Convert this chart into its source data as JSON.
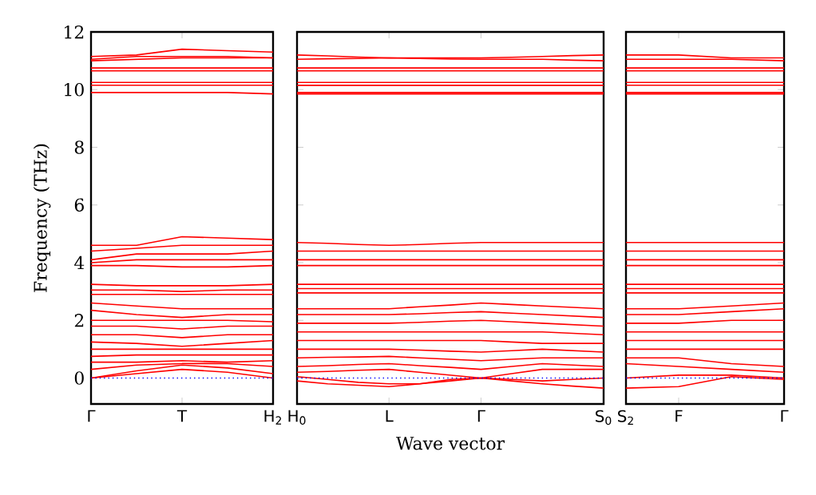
{
  "chart_data": [
    {
      "type": "line",
      "ylabel": "Frequency (THz)",
      "categories": [
        "Γ",
        null,
        "T",
        null,
        "H$_{2}$"
      ],
      "ylim": [
        -0.9,
        12
      ],
      "yticks": [
        0,
        2,
        4,
        6,
        8,
        10,
        12
      ],
      "marker": "none",
      "ref_lines": [
        {
          "axis": "y",
          "value": 0,
          "color": "#0000ff",
          "line_style": "dotted"
        }
      ],
      "series": [
        {
          "color": "#ff0000",
          "values": [
            11.15,
            11.2,
            11.4,
            11.35,
            11.3
          ]
        },
        {
          "color": "#ff0000",
          "values": [
            11.05,
            11.15,
            11.15,
            11.15,
            11.1
          ]
        },
        {
          "color": "#ff0000",
          "values": [
            11.0,
            11.05,
            11.1,
            11.1,
            11.1
          ]
        },
        {
          "color": "#ff0000",
          "values": [
            10.75,
            10.75,
            10.75,
            10.75,
            10.75
          ]
        },
        {
          "color": "#ff0000",
          "values": [
            10.65,
            10.65,
            10.65,
            10.65,
            10.65
          ]
        },
        {
          "color": "#ff0000",
          "values": [
            10.25,
            10.25,
            10.25,
            10.25,
            10.25
          ]
        },
        {
          "color": "#ff0000",
          "values": [
            10.15,
            10.15,
            10.15,
            10.15,
            10.15
          ]
        },
        {
          "color": "#ff0000",
          "values": [
            9.9,
            9.9,
            9.9,
            9.9,
            9.85
          ]
        },
        {
          "color": "#ff0000",
          "values": [
            4.6,
            4.6,
            4.9,
            4.85,
            4.8
          ]
        },
        {
          "color": "#ff0000",
          "values": [
            4.4,
            4.5,
            4.6,
            4.6,
            4.6
          ]
        },
        {
          "color": "#ff0000",
          "values": [
            4.1,
            4.3,
            4.3,
            4.3,
            4.4
          ]
        },
        {
          "color": "#ff0000",
          "values": [
            4.0,
            4.1,
            4.1,
            4.1,
            4.1
          ]
        },
        {
          "color": "#ff0000",
          "values": [
            3.9,
            3.9,
            3.85,
            3.85,
            3.9
          ]
        },
        {
          "color": "#ff0000",
          "values": [
            3.25,
            3.2,
            3.2,
            3.2,
            3.25
          ]
        },
        {
          "color": "#ff0000",
          "values": [
            3.05,
            3.05,
            3.0,
            3.05,
            3.05
          ]
        },
        {
          "color": "#ff0000",
          "values": [
            2.9,
            2.9,
            2.9,
            2.9,
            2.9
          ]
        },
        {
          "color": "#ff0000",
          "values": [
            2.6,
            2.5,
            2.4,
            2.4,
            2.4
          ]
        },
        {
          "color": "#ff0000",
          "values": [
            2.35,
            2.2,
            2.1,
            2.2,
            2.2
          ]
        },
        {
          "color": "#ff0000",
          "values": [
            2.0,
            2.0,
            2.0,
            2.0,
            1.95
          ]
        },
        {
          "color": "#ff0000",
          "values": [
            1.8,
            1.8,
            1.7,
            1.8,
            1.8
          ]
        },
        {
          "color": "#ff0000",
          "values": [
            1.5,
            1.5,
            1.4,
            1.5,
            1.5
          ]
        },
        {
          "color": "#ff0000",
          "values": [
            1.25,
            1.2,
            1.1,
            1.2,
            1.3
          ]
        },
        {
          "color": "#ff0000",
          "values": [
            1.0,
            1.0,
            1.0,
            1.0,
            1.0
          ]
        },
        {
          "color": "#ff0000",
          "values": [
            0.75,
            0.8,
            0.8,
            0.8,
            0.8
          ]
        },
        {
          "color": "#ff0000",
          "values": [
            0.55,
            0.55,
            0.6,
            0.55,
            0.6
          ]
        },
        {
          "color": "#ff0000",
          "values": [
            0.3,
            0.45,
            0.5,
            0.5,
            0.4
          ]
        },
        {
          "color": "#ff0000",
          "values": [
            0.0,
            0.25,
            0.45,
            0.35,
            0.15
          ]
        },
        {
          "color": "#ff0000",
          "values": [
            0.0,
            0.15,
            0.3,
            0.2,
            0.0
          ]
        }
      ]
    },
    {
      "type": "line",
      "xlabel": "Wave vector",
      "categories": [
        "H$_{0}$",
        null,
        null,
        "L",
        null,
        null,
        "Γ",
        null,
        null,
        null,
        "S$_{0}$"
      ],
      "ylim": [
        -0.9,
        12
      ],
      "yticks": [
        0,
        2,
        4,
        6,
        8,
        10,
        12
      ],
      "tick_labels": "x",
      "marker": "none",
      "ref_lines": [
        {
          "axis": "y",
          "value": 0,
          "color": "#0000ff",
          "line_style": "dotted"
        }
      ],
      "series": [
        {
          "color": "#ff0000",
          "values": [
            11.2,
            11.17,
            11.13,
            11.1,
            11.1,
            11.1,
            11.1,
            11.12,
            11.15,
            11.18,
            11.2
          ]
        },
        {
          "color": "#ff0000",
          "values": [
            11.05,
            11.07,
            11.08,
            11.1,
            11.08,
            11.06,
            11.05,
            11.05,
            11.05,
            11.02,
            11.0
          ]
        },
        {
          "color": "#ff0000",
          "values": [
            10.75,
            10.75,
            10.75,
            10.75,
            10.75,
            10.75,
            10.75,
            10.75,
            10.75,
            10.75,
            10.75
          ]
        },
        {
          "color": "#ff0000",
          "values": [
            10.65,
            10.65,
            10.65,
            10.65,
            10.65,
            10.65,
            10.65,
            10.65,
            10.65,
            10.65,
            10.65
          ]
        },
        {
          "color": "#ff0000",
          "values": [
            10.25,
            10.25,
            10.25,
            10.25,
            10.25,
            10.25,
            10.25,
            10.25,
            10.25,
            10.25,
            10.25
          ]
        },
        {
          "color": "#ff0000",
          "values": [
            10.15,
            10.15,
            10.15,
            10.15,
            10.15,
            10.15,
            10.15,
            10.15,
            10.15,
            10.15,
            10.15
          ]
        },
        {
          "color": "#ff0000",
          "values": [
            9.9,
            9.9,
            9.9,
            9.9,
            9.9,
            9.9,
            9.9,
            9.9,
            9.9,
            9.9,
            9.9
          ]
        },
        {
          "color": "#ff0000",
          "values": [
            9.85,
            9.85,
            9.85,
            9.85,
            9.85,
            9.85,
            9.85,
            9.85,
            9.85,
            9.85,
            9.85
          ]
        },
        {
          "color": "#ff0000",
          "values": [
            4.7,
            4.67,
            4.63,
            4.6,
            4.63,
            4.67,
            4.7,
            4.7,
            4.7,
            4.7,
            4.7
          ]
        },
        {
          "color": "#ff0000",
          "values": [
            4.4,
            4.4,
            4.4,
            4.4,
            4.4,
            4.4,
            4.4,
            4.4,
            4.4,
            4.4,
            4.4
          ]
        },
        {
          "color": "#ff0000",
          "values": [
            4.1,
            4.1,
            4.1,
            4.1,
            4.1,
            4.1,
            4.1,
            4.1,
            4.1,
            4.1,
            4.1
          ]
        },
        {
          "color": "#ff0000",
          "values": [
            3.9,
            3.9,
            3.9,
            3.9,
            3.9,
            3.9,
            3.9,
            3.9,
            3.9,
            3.9,
            3.9
          ]
        },
        {
          "color": "#ff0000",
          "values": [
            3.25,
            3.25,
            3.25,
            3.25,
            3.25,
            3.25,
            3.25,
            3.25,
            3.25,
            3.25,
            3.25
          ]
        },
        {
          "color": "#ff0000",
          "values": [
            3.1,
            3.1,
            3.1,
            3.1,
            3.1,
            3.1,
            3.1,
            3.1,
            3.1,
            3.1,
            3.1
          ]
        },
        {
          "color": "#ff0000",
          "values": [
            2.95,
            2.95,
            2.95,
            2.95,
            2.95,
            2.95,
            2.95,
            2.95,
            2.95,
            2.95,
            2.95
          ]
        },
        {
          "color": "#ff0000",
          "values": [
            2.4,
            2.4,
            2.4,
            2.4,
            2.47,
            2.53,
            2.6,
            2.55,
            2.5,
            2.45,
            2.4
          ]
        },
        {
          "color": "#ff0000",
          "values": [
            2.2,
            2.2,
            2.2,
            2.2,
            2.23,
            2.27,
            2.3,
            2.25,
            2.2,
            2.15,
            2.1
          ]
        },
        {
          "color": "#ff0000",
          "values": [
            1.9,
            1.9,
            1.9,
            1.9,
            1.93,
            1.97,
            2.0,
            1.95,
            1.9,
            1.85,
            1.8
          ]
        },
        {
          "color": "#ff0000",
          "values": [
            1.6,
            1.6,
            1.6,
            1.6,
            1.6,
            1.6,
            1.6,
            1.6,
            1.6,
            1.55,
            1.5
          ]
        },
        {
          "color": "#ff0000",
          "values": [
            1.3,
            1.3,
            1.3,
            1.3,
            1.3,
            1.3,
            1.3,
            1.25,
            1.2,
            1.2,
            1.2
          ]
        },
        {
          "color": "#ff0000",
          "values": [
            1.0,
            1.0,
            1.0,
            1.0,
            0.97,
            0.93,
            0.9,
            0.95,
            1.0,
            0.95,
            0.9
          ]
        },
        {
          "color": "#ff0000",
          "values": [
            0.7,
            0.72,
            0.73,
            0.75,
            0.7,
            0.65,
            0.6,
            0.65,
            0.7,
            0.7,
            0.7
          ]
        },
        {
          "color": "#ff0000",
          "values": [
            0.4,
            0.43,
            0.47,
            0.5,
            0.43,
            0.37,
            0.3,
            0.4,
            0.5,
            0.45,
            0.4
          ]
        },
        {
          "color": "#ff0000",
          "values": [
            0.2,
            0.23,
            0.27,
            0.3,
            0.2,
            0.1,
            0.0,
            0.15,
            0.3,
            0.3,
            0.3
          ]
        },
        {
          "color": "#ff0000",
          "values": [
            0.05,
            -0.05,
            -0.15,
            -0.2,
            -0.2,
            -0.05,
            0.0,
            -0.05,
            -0.1,
            -0.05,
            0.0
          ]
        },
        {
          "color": "#ff0000",
          "values": [
            -0.1,
            -0.2,
            -0.25,
            -0.3,
            -0.2,
            -0.1,
            0.0,
            -0.1,
            -0.2,
            -0.28,
            -0.35
          ]
        }
      ]
    },
    {
      "type": "line",
      "categories": [
        "S$_{2}$",
        "F",
        null,
        "Γ"
      ],
      "ylim": [
        -0.9,
        12
      ],
      "yticks": [
        0,
        2,
        4,
        6,
        8,
        10,
        12
      ],
      "tick_labels": "x",
      "marker": "none",
      "ref_lines": [
        {
          "axis": "y",
          "value": 0,
          "color": "#0000ff",
          "line_style": "dotted"
        }
      ],
      "series": [
        {
          "color": "#ff0000",
          "values": [
            11.2,
            11.2,
            11.1,
            11.1
          ]
        },
        {
          "color": "#ff0000",
          "values": [
            11.05,
            11.05,
            11.05,
            11.0
          ]
        },
        {
          "color": "#ff0000",
          "values": [
            10.75,
            10.75,
            10.75,
            10.75
          ]
        },
        {
          "color": "#ff0000",
          "values": [
            10.65,
            10.65,
            10.65,
            10.65
          ]
        },
        {
          "color": "#ff0000",
          "values": [
            10.25,
            10.25,
            10.25,
            10.25
          ]
        },
        {
          "color": "#ff0000",
          "values": [
            10.15,
            10.15,
            10.15,
            10.15
          ]
        },
        {
          "color": "#ff0000",
          "values": [
            9.9,
            9.9,
            9.9,
            9.9
          ]
        },
        {
          "color": "#ff0000",
          "values": [
            9.85,
            9.85,
            9.85,
            9.85
          ]
        },
        {
          "color": "#ff0000",
          "values": [
            4.7,
            4.7,
            4.7,
            4.7
          ]
        },
        {
          "color": "#ff0000",
          "values": [
            4.4,
            4.4,
            4.4,
            4.4
          ]
        },
        {
          "color": "#ff0000",
          "values": [
            4.1,
            4.1,
            4.1,
            4.1
          ]
        },
        {
          "color": "#ff0000",
          "values": [
            3.9,
            3.9,
            3.9,
            3.9
          ]
        },
        {
          "color": "#ff0000",
          "values": [
            3.25,
            3.25,
            3.25,
            3.25
          ]
        },
        {
          "color": "#ff0000",
          "values": [
            3.1,
            3.1,
            3.1,
            3.1
          ]
        },
        {
          "color": "#ff0000",
          "values": [
            2.95,
            2.95,
            2.95,
            2.95
          ]
        },
        {
          "color": "#ff0000",
          "values": [
            2.4,
            2.4,
            2.5,
            2.6
          ]
        },
        {
          "color": "#ff0000",
          "values": [
            2.2,
            2.2,
            2.3,
            2.4
          ]
        },
        {
          "color": "#ff0000",
          "values": [
            1.9,
            1.9,
            2.0,
            2.0
          ]
        },
        {
          "color": "#ff0000",
          "values": [
            1.6,
            1.6,
            1.6,
            1.6
          ]
        },
        {
          "color": "#ff0000",
          "values": [
            1.3,
            1.3,
            1.3,
            1.3
          ]
        },
        {
          "color": "#ff0000",
          "values": [
            1.0,
            1.0,
            1.0,
            1.0
          ]
        },
        {
          "color": "#ff0000",
          "values": [
            0.7,
            0.7,
            0.5,
            0.4
          ]
        },
        {
          "color": "#ff0000",
          "values": [
            0.5,
            0.4,
            0.3,
            0.2
          ]
        },
        {
          "color": "#ff0000",
          "values": [
            0.0,
            0.1,
            0.1,
            0.0
          ]
        },
        {
          "color": "#ff0000",
          "values": [
            -0.35,
            -0.3,
            0.05,
            -0.05
          ]
        }
      ]
    }
  ]
}
